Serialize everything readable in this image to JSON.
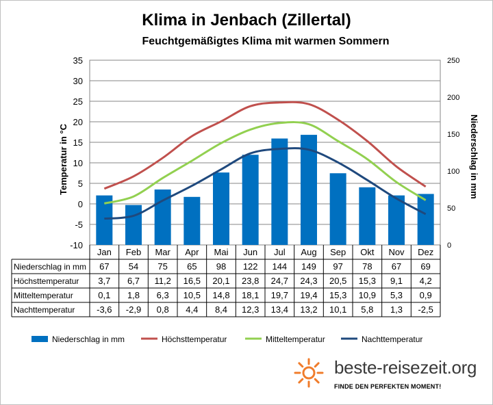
{
  "chart_data": {
    "type": "bar+line",
    "title": "Klima in Jenbach (Zillertal)",
    "subtitle": "Feuchtgemäßigtes  Klima mit warmen Sommern",
    "categories": [
      "Jan",
      "Feb",
      "Mar",
      "Apr",
      "Mai",
      "Jun",
      "Jul",
      "Aug",
      "Sep",
      "Okt",
      "Nov",
      "Dez"
    ],
    "y_left_label": "Temperatur in °C",
    "y_left_range": [
      -10,
      35
    ],
    "y_left_ticks": [
      35,
      30,
      25,
      20,
      15,
      10,
      5,
      0,
      -5,
      -10
    ],
    "y_right_label": "Niederschlag in mm",
    "y_right_range": [
      0,
      250
    ],
    "y_right_ticks": [
      250,
      200,
      150,
      100,
      50,
      0
    ],
    "grid": true,
    "legend_position": "bottom",
    "series": [
      {
        "name": "Niederschlag in mm",
        "type": "bar",
        "axis": "right",
        "color": "#0070c0",
        "values": [
          67,
          54,
          75,
          65,
          98,
          122,
          144,
          149,
          97,
          78,
          67,
          69
        ]
      },
      {
        "name": "Höchsttemperatur",
        "type": "line",
        "axis": "left",
        "color": "#c0504d",
        "values": [
          3.7,
          6.7,
          11.2,
          16.5,
          20.1,
          23.8,
          24.7,
          24.3,
          20.5,
          15.3,
          9.1,
          4.2
        ]
      },
      {
        "name": "Mitteltemperatur",
        "type": "line",
        "axis": "left",
        "color": "#92d050",
        "values": [
          0.1,
          1.8,
          6.3,
          10.5,
          14.8,
          18.1,
          19.7,
          19.4,
          15.3,
          10.9,
          5.3,
          0.9
        ]
      },
      {
        "name": "Nachttemperatur",
        "type": "line",
        "axis": "left",
        "color": "#1f497d",
        "values": [
          -3.6,
          -2.9,
          0.8,
          4.4,
          8.4,
          12.3,
          13.4,
          13.2,
          10.1,
          5.8,
          1.3,
          -2.5
        ]
      }
    ],
    "table": {
      "rows": [
        {
          "label": "Niederschlag in mm",
          "values": [
            "67",
            "54",
            "75",
            "65",
            "98",
            "122",
            "144",
            "149",
            "97",
            "78",
            "67",
            "69"
          ]
        },
        {
          "label": "Höchsttemperatur",
          "values": [
            "3,7",
            "6,7",
            "11,2",
            "16,5",
            "20,1",
            "23,8",
            "24,7",
            "24,3",
            "20,5",
            "15,3",
            "9,1",
            "4,2"
          ]
        },
        {
          "label": "Mitteltemperatur",
          "values": [
            "0,1",
            "1,8",
            "6,3",
            "10,5",
            "14,8",
            "18,1",
            "19,7",
            "19,4",
            "15,3",
            "10,9",
            "5,3",
            "0,9"
          ]
        },
        {
          "label": "Nachttemperatur",
          "values": [
            "-3,6",
            "-2,9",
            "0,8",
            "4,4",
            "8,4",
            "12,3",
            "13,4",
            "13,2",
            "10,1",
            "5,8",
            "1,3",
            "-2,5"
          ]
        }
      ]
    }
  },
  "brand": {
    "name": "beste-reisezeit.org",
    "slogan": "FINDE DEN PERFEKTEN MOMENT!"
  }
}
